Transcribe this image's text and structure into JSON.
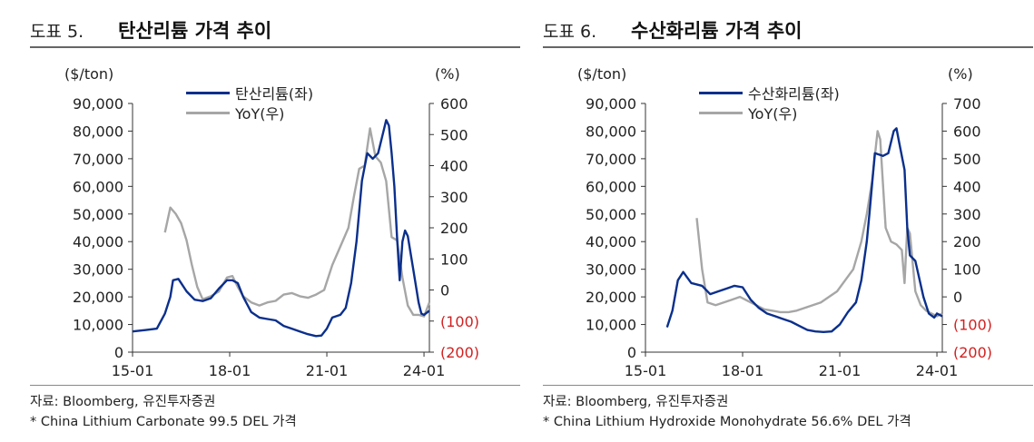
{
  "panels": [
    {
      "fig_num": "도표 5.",
      "title": "탄산리튬 가격 추이",
      "unit_left": "($/ton)",
      "unit_right": "(%)",
      "legend": [
        "탄산리튬(좌)",
        "YoY(우)"
      ],
      "source": "자료: Bloomberg, 유진투자증권",
      "note": "* China Lithium Carbonate 99.5 DEL 가격"
    },
    {
      "fig_num": "도표 6.",
      "title": "수산화리튬 가격 추이",
      "unit_left": "($/ton)",
      "unit_right": "(%)",
      "legend": [
        "수산화리튬(좌)",
        "YoY(우)"
      ],
      "source": "자료: Bloomberg, 유진투자증권",
      "note": "* China Lithium Hydroxide Monohydrate 56.6% DEL 가격"
    }
  ],
  "colors": {
    "price": "#0a2f8c",
    "yoy": "#a6a6a6",
    "negative_tick": "#d21f1f"
  },
  "chart_data": [
    {
      "type": "line",
      "title": "탄산리튬 가격 추이",
      "x_ticks": [
        "15-01",
        "18-01",
        "21-01",
        "24-01"
      ],
      "xlim": [
        "2015-01",
        "2024-03"
      ],
      "y_left": {
        "label": "($/ton)",
        "ticks": [
          "0",
          "10,000",
          "20,000",
          "30,000",
          "40,000",
          "50,000",
          "60,000",
          "70,000",
          "80,000",
          "90,000"
        ],
        "ylim": [
          0,
          90000
        ]
      },
      "y_right": {
        "label": "(%)",
        "ticks": [
          "(200)",
          "(100)",
          "0",
          "100",
          "200",
          "300",
          "400",
          "500",
          "600"
        ],
        "ylim": [
          -200,
          600
        ]
      },
      "legend_position": "top-center",
      "grid": false,
      "series": [
        {
          "name": "탄산리튬(좌)",
          "axis": "left",
          "points": [
            [
              "2015-01",
              7500
            ],
            [
              "2015-06",
              8000
            ],
            [
              "2015-10",
              8500
            ],
            [
              "2016-01",
              14000
            ],
            [
              "2016-03",
              20000
            ],
            [
              "2016-04",
              26000
            ],
            [
              "2016-06",
              26500
            ],
            [
              "2016-09",
              22000
            ],
            [
              "2016-12",
              19000
            ],
            [
              "2017-03",
              18500
            ],
            [
              "2017-06",
              19500
            ],
            [
              "2017-09",
              23000
            ],
            [
              "2017-12",
              26000
            ],
            [
              "2018-02",
              26000
            ],
            [
              "2018-04",
              25000
            ],
            [
              "2018-06",
              20000
            ],
            [
              "2018-09",
              14500
            ],
            [
              "2018-12",
              12500
            ],
            [
              "2019-03",
              12000
            ],
            [
              "2019-06",
              11500
            ],
            [
              "2019-09",
              9500
            ],
            [
              "2019-12",
              8500
            ],
            [
              "2020-03",
              7500
            ],
            [
              "2020-06",
              6500
            ],
            [
              "2020-09",
              5800
            ],
            [
              "2020-11",
              6000
            ],
            [
              "2021-01",
              8500
            ],
            [
              "2021-03",
              12500
            ],
            [
              "2021-06",
              13500
            ],
            [
              "2021-08",
              16000
            ],
            [
              "2021-10",
              25000
            ],
            [
              "2021-12",
              40000
            ],
            [
              "2022-02",
              62000
            ],
            [
              "2022-04",
              72000
            ],
            [
              "2022-06",
              70000
            ],
            [
              "2022-08",
              72000
            ],
            [
              "2022-10",
              80000
            ],
            [
              "2022-11",
              84000
            ],
            [
              "2022-12",
              82000
            ],
            [
              "2023-01",
              72000
            ],
            [
              "2023-02",
              60000
            ],
            [
              "2023-03",
              42000
            ],
            [
              "2023-04",
              26000
            ],
            [
              "2023-05",
              40000
            ],
            [
              "2023-06",
              44000
            ],
            [
              "2023-07",
              42000
            ],
            [
              "2023-09",
              30000
            ],
            [
              "2023-11",
              18000
            ],
            [
              "2023-12",
              14000
            ],
            [
              "2024-01",
              13500
            ],
            [
              "2024-03",
              15000
            ]
          ]
        },
        {
          "name": "YoY(우)",
          "axis": "right",
          "points": [
            [
              "2016-01",
              185
            ],
            [
              "2016-03",
              265
            ],
            [
              "2016-05",
              245
            ],
            [
              "2016-07",
              215
            ],
            [
              "2016-09",
              160
            ],
            [
              "2016-11",
              80
            ],
            [
              "2017-01",
              10
            ],
            [
              "2017-03",
              -30
            ],
            [
              "2017-06",
              -20
            ],
            [
              "2017-09",
              -5
            ],
            [
              "2017-12",
              40
            ],
            [
              "2018-02",
              45
            ],
            [
              "2018-04",
              10
            ],
            [
              "2018-06",
              -20
            ],
            [
              "2018-09",
              -40
            ],
            [
              "2018-12",
              -50
            ],
            [
              "2019-03",
              -40
            ],
            [
              "2019-06",
              -35
            ],
            [
              "2019-09",
              -15
            ],
            [
              "2019-12",
              -10
            ],
            [
              "2020-03",
              -20
            ],
            [
              "2020-06",
              -25
            ],
            [
              "2020-09",
              -15
            ],
            [
              "2020-12",
              0
            ],
            [
              "2021-03",
              80
            ],
            [
              "2021-06",
              140
            ],
            [
              "2021-09",
              200
            ],
            [
              "2021-11",
              300
            ],
            [
              "2022-01",
              390
            ],
            [
              "2022-03",
              400
            ],
            [
              "2022-05",
              520
            ],
            [
              "2022-07",
              430
            ],
            [
              "2022-09",
              410
            ],
            [
              "2022-11",
              350
            ],
            [
              "2023-01",
              170
            ],
            [
              "2023-03",
              160
            ],
            [
              "2023-05",
              40
            ],
            [
              "2023-07",
              -50
            ],
            [
              "2023-09",
              -80
            ],
            [
              "2023-11",
              -80
            ],
            [
              "2024-01",
              -85
            ],
            [
              "2024-03",
              -40
            ]
          ]
        }
      ]
    },
    {
      "type": "line",
      "title": "수산화리튬 가격 추이",
      "x_ticks": [
        "15-01",
        "18-01",
        "21-01",
        "24-01"
      ],
      "xlim": [
        "2015-01",
        "2024-03"
      ],
      "y_left": {
        "label": "($/ton)",
        "ticks": [
          "0",
          "10,000",
          "20,000",
          "30,000",
          "40,000",
          "50,000",
          "60,000",
          "70,000",
          "80,000",
          "90,000"
        ],
        "ylim": [
          0,
          90000
        ]
      },
      "y_right": {
        "label": "(%)",
        "ticks": [
          "(200)",
          "(100)",
          "0",
          "100",
          "200",
          "300",
          "400",
          "500",
          "600",
          "700"
        ],
        "ylim": [
          -200,
          700
        ]
      },
      "legend_position": "top-center",
      "grid": false,
      "series": [
        {
          "name": "수산화리튬(좌)",
          "axis": "left",
          "points": [
            [
              "2015-09",
              9000
            ],
            [
              "2015-11",
              15000
            ],
            [
              "2016-01",
              26000
            ],
            [
              "2016-03",
              29000
            ],
            [
              "2016-06",
              25000
            ],
            [
              "2016-10",
              24000
            ],
            [
              "2017-01",
              21000
            ],
            [
              "2017-04",
              22000
            ],
            [
              "2017-07",
              23000
            ],
            [
              "2017-10",
              24000
            ],
            [
              "2018-01",
              23500
            ],
            [
              "2018-04",
              19000
            ],
            [
              "2018-07",
              16000
            ],
            [
              "2018-10",
              14000
            ],
            [
              "2019-01",
              13000
            ],
            [
              "2019-04",
              12000
            ],
            [
              "2019-07",
              11000
            ],
            [
              "2019-10",
              9500
            ],
            [
              "2020-01",
              8000
            ],
            [
              "2020-04",
              7500
            ],
            [
              "2020-07",
              7300
            ],
            [
              "2020-10",
              7500
            ],
            [
              "2021-01",
              10000
            ],
            [
              "2021-04",
              14500
            ],
            [
              "2021-07",
              18000
            ],
            [
              "2021-09",
              26000
            ],
            [
              "2021-11",
              40000
            ],
            [
              "2021-12",
              50000
            ],
            [
              "2022-02",
              72000
            ],
            [
              "2022-05",
              71000
            ],
            [
              "2022-07",
              72000
            ],
            [
              "2022-09",
              80000
            ],
            [
              "2022-10",
              81000
            ],
            [
              "2022-11",
              76000
            ],
            [
              "2023-01",
              66000
            ],
            [
              "2023-02",
              45000
            ],
            [
              "2023-03",
              35000
            ],
            [
              "2023-05",
              33000
            ],
            [
              "2023-08",
              20000
            ],
            [
              "2023-10",
              14000
            ],
            [
              "2023-12",
              12500
            ],
            [
              "2024-01",
              14000
            ],
            [
              "2024-03",
              13000
            ]
          ]
        },
        {
          "name": "YoY(우)",
          "axis": "right",
          "points": [
            [
              "2016-08",
              285
            ],
            [
              "2016-10",
              100
            ],
            [
              "2016-12",
              -20
            ],
            [
              "2017-03",
              -30
            ],
            [
              "2017-06",
              -20
            ],
            [
              "2017-09",
              -10
            ],
            [
              "2017-12",
              0
            ],
            [
              "2018-03",
              -15
            ],
            [
              "2018-06",
              -30
            ],
            [
              "2018-09",
              -45
            ],
            [
              "2018-12",
              -50
            ],
            [
              "2019-03",
              -55
            ],
            [
              "2019-06",
              -55
            ],
            [
              "2019-09",
              -50
            ],
            [
              "2019-12",
              -40
            ],
            [
              "2020-03",
              -30
            ],
            [
              "2020-06",
              -20
            ],
            [
              "2020-09",
              0
            ],
            [
              "2020-12",
              20
            ],
            [
              "2021-03",
              60
            ],
            [
              "2021-06",
              100
            ],
            [
              "2021-09",
              200
            ],
            [
              "2021-11",
              300
            ],
            [
              "2022-01",
              420
            ],
            [
              "2022-03",
              600
            ],
            [
              "2022-04",
              570
            ],
            [
              "2022-06",
              250
            ],
            [
              "2022-08",
              200
            ],
            [
              "2022-10",
              190
            ],
            [
              "2022-12",
              170
            ],
            [
              "2023-01",
              50
            ],
            [
              "2023-02",
              250
            ],
            [
              "2023-03",
              230
            ],
            [
              "2023-05",
              20
            ],
            [
              "2023-07",
              -30
            ],
            [
              "2023-09",
              -50
            ],
            [
              "2023-11",
              -60
            ],
            [
              "2024-01",
              -70
            ],
            [
              "2024-03",
              -60
            ]
          ]
        }
      ]
    }
  ]
}
